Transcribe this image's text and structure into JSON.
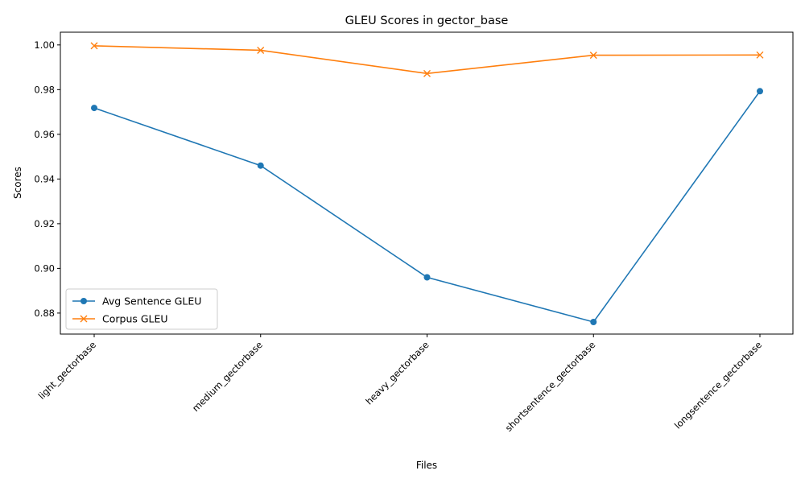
{
  "chart_data": {
    "type": "line",
    "title": "GLEU Scores in gector_base",
    "xlabel": "Files",
    "ylabel": "Scores",
    "categories": [
      "light_gectorbase",
      "medium_gectorbase",
      "heavy_gectorbase",
      "shortsentence_gectorbase",
      "longsentence_gectorbase"
    ],
    "ylim": [
      0.8706,
      1.0057
    ],
    "yticks": [
      0.88,
      0.9,
      0.92,
      0.94,
      0.96,
      0.98,
      1.0
    ],
    "ytick_labels": [
      "0.88",
      "0.90",
      "0.92",
      "0.94",
      "0.96",
      "0.98",
      "1.00"
    ],
    "grid": false,
    "legend_position": "lower-left",
    "series": [
      {
        "name": "Avg Sentence GLEU",
        "values": [
          0.9718,
          0.946,
          0.896,
          0.876,
          0.9793
        ],
        "color": "#1f77b4",
        "marker": "circle"
      },
      {
        "name": "Corpus GLEU",
        "values": [
          0.9996,
          0.9976,
          0.9872,
          0.9954,
          0.9955
        ],
        "color": "#ff7f0e",
        "marker": "x"
      }
    ]
  }
}
